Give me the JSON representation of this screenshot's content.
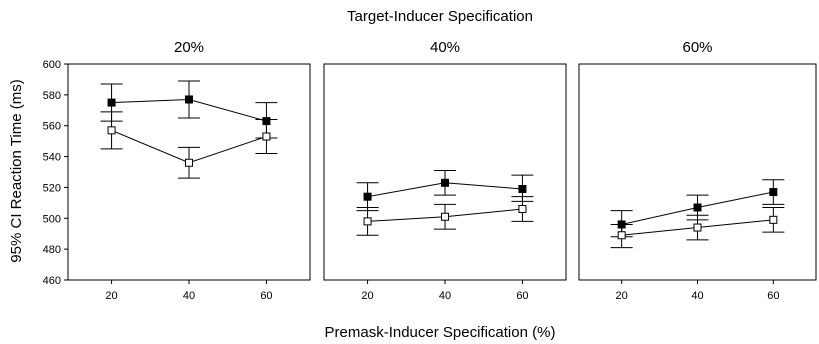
{
  "chart_data": {
    "type": "line",
    "title": "Target-Inducer Specification",
    "xlabel": "Premask-Inducer Specification (%)",
    "ylabel": "95% CI Reaction Time (ms)",
    "ylim": [
      460,
      600
    ],
    "yticks": [
      460,
      480,
      500,
      520,
      540,
      560,
      580,
      600
    ],
    "x": [
      20,
      40,
      60
    ],
    "grid": false,
    "legend": "none",
    "panels": [
      {
        "title": "20%",
        "series": [
          {
            "marker": "filled-square",
            "values": [
              575,
              577,
              563
            ],
            "ci_low": [
              563,
              565,
              552
            ],
            "ci_high": [
              587,
              589,
              575
            ]
          },
          {
            "marker": "open-square",
            "values": [
              557,
              536,
              553
            ],
            "ci_low": [
              545,
              526,
              542
            ],
            "ci_high": [
              569,
              546,
              564
            ]
          }
        ]
      },
      {
        "title": "40%",
        "series": [
          {
            "marker": "filled-square",
            "values": [
              514,
              523,
              519
            ],
            "ci_low": [
              505,
              515,
              511
            ],
            "ci_high": [
              523,
              531,
              528
            ]
          },
          {
            "marker": "open-square",
            "values": [
              498,
              501,
              506
            ],
            "ci_low": [
              489,
              493,
              498
            ],
            "ci_high": [
              507,
              509,
              514
            ]
          }
        ]
      },
      {
        "title": "60%",
        "series": [
          {
            "marker": "filled-square",
            "values": [
              496,
              507,
              517
            ],
            "ci_low": [
              488,
              499,
              509
            ],
            "ci_high": [
              505,
              515,
              525
            ]
          },
          {
            "marker": "open-square",
            "values": [
              489,
              494,
              499
            ],
            "ci_low": [
              481,
              486,
              491
            ],
            "ci_high": [
              496,
              502,
              507
            ]
          }
        ]
      }
    ],
    "colors": {
      "line": "#000000",
      "axis": "#000000"
    }
  }
}
